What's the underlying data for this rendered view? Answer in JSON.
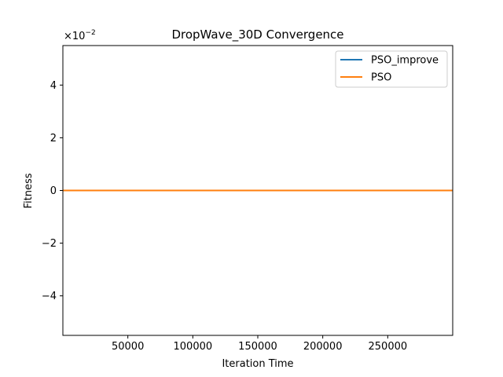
{
  "chart_data": {
    "type": "line",
    "title": "DropWave_30D Convergence",
    "xlabel": "Iteration Time",
    "ylabel": "Fitness",
    "xlim": [
      1,
      300000
    ],
    "ylim": [
      -0.055,
      0.055
    ],
    "x_ticks": [
      50000,
      100000,
      150000,
      200000,
      250000
    ],
    "x_tick_labels": [
      "50000",
      "100000",
      "150000",
      "200000",
      "250000"
    ],
    "y_ticks": [
      -0.04,
      -0.02,
      0,
      0.02,
      0.04
    ],
    "y_tick_labels": [
      "−4",
      "−2",
      "0",
      "2",
      "4"
    ],
    "y_offset": {
      "base": "×10",
      "exponent": "−2"
    },
    "grid": false,
    "legend_position": "top-right",
    "series": [
      {
        "name": "PSO_improve",
        "color": "#1f77b4",
        "x": [
          1,
          300000
        ],
        "y": [
          0,
          0
        ]
      },
      {
        "name": "PSO",
        "color": "#ff7f0e",
        "x": [
          1,
          300000
        ],
        "y": [
          0,
          0
        ]
      }
    ]
  }
}
